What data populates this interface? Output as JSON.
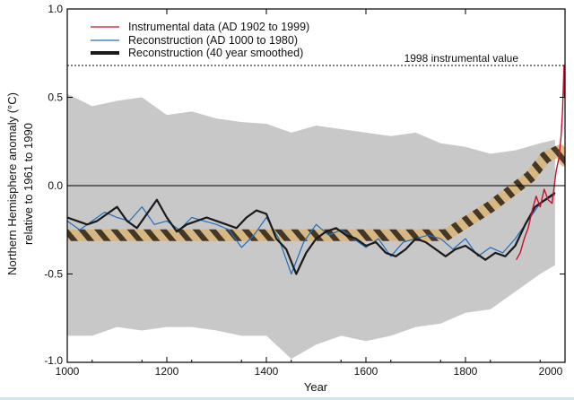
{
  "chart_data": {
    "type": "line",
    "xlabel": "Year",
    "ylabel_lines": [
      "Northern Hemisphere anomaly (°C)",
      "relative to 1961 to 1990"
    ],
    "xlim": [
      1000,
      2000
    ],
    "ylim": [
      -1.0,
      1.0
    ],
    "x_ticks": [
      1000,
      1200,
      1400,
      1600,
      1800,
      2000
    ],
    "y_ticks": [
      -1.0,
      -0.5,
      0.0,
      0.5,
      1.0
    ],
    "x_tick_labels": [
      "1000",
      "1200",
      "1400",
      "1600",
      "1800",
      "2000"
    ],
    "y_tick_labels": [
      "-1.0",
      "-0.5",
      "0.0",
      "0.5",
      "1.0"
    ],
    "zero_line": true,
    "legend_position": "top-left",
    "colors": {
      "instrumental": "#c8102e",
      "reconstruction": "#1f6fbf",
      "smoothed": "#1a1a1a",
      "uncertainty": "#c8c8c8",
      "overlay_light": "#e2c48a",
      "overlay_dark": "#3a2a18"
    },
    "annotation": {
      "label": "1998 instrumental value",
      "y": 0.68
    },
    "series": [
      {
        "name": "Instrumental data (AD 1902 to 1999)",
        "style": "thin-line",
        "x": [
          1902,
          1910,
          1918,
          1926,
          1934,
          1942,
          1950,
          1958,
          1966,
          1974,
          1982,
          1988,
          1992,
          1995,
          1998,
          1999
        ],
        "y": [
          -0.42,
          -0.38,
          -0.3,
          -0.24,
          -0.14,
          -0.06,
          -0.12,
          -0.02,
          -0.08,
          -0.1,
          0.08,
          0.16,
          0.28,
          0.42,
          0.68,
          0.5
        ]
      },
      {
        "name": "Reconstruction (AD 1000 to 1980)",
        "style": "thin-line",
        "x": [
          1000,
          1025,
          1050,
          1075,
          1100,
          1125,
          1150,
          1175,
          1200,
          1225,
          1250,
          1275,
          1300,
          1325,
          1350,
          1375,
          1400,
          1425,
          1450,
          1475,
          1500,
          1525,
          1550,
          1575,
          1600,
          1625,
          1650,
          1675,
          1700,
          1725,
          1750,
          1775,
          1800,
          1825,
          1850,
          1875,
          1900,
          1925,
          1950,
          1980
        ],
        "y": [
          -0.2,
          -0.25,
          -0.2,
          -0.15,
          -0.18,
          -0.2,
          -0.12,
          -0.22,
          -0.2,
          -0.25,
          -0.18,
          -0.2,
          -0.22,
          -0.25,
          -0.35,
          -0.28,
          -0.18,
          -0.3,
          -0.5,
          -0.32,
          -0.22,
          -0.28,
          -0.25,
          -0.3,
          -0.35,
          -0.3,
          -0.4,
          -0.32,
          -0.3,
          -0.28,
          -0.3,
          -0.36,
          -0.3,
          -0.4,
          -0.35,
          -0.38,
          -0.3,
          -0.2,
          -0.1,
          -0.05
        ]
      },
      {
        "name": "Reconstruction (40 year smoothed)",
        "style": "thick-line",
        "x": [
          1000,
          1020,
          1040,
          1060,
          1080,
          1100,
          1120,
          1140,
          1160,
          1180,
          1200,
          1220,
          1240,
          1260,
          1280,
          1300,
          1320,
          1340,
          1360,
          1380,
          1400,
          1420,
          1440,
          1460,
          1480,
          1500,
          1520,
          1540,
          1560,
          1580,
          1600,
          1620,
          1640,
          1660,
          1680,
          1700,
          1720,
          1740,
          1760,
          1780,
          1800,
          1820,
          1840,
          1860,
          1880,
          1900,
          1920,
          1940,
          1960,
          1980
        ],
        "y": [
          -0.18,
          -0.2,
          -0.22,
          -0.2,
          -0.16,
          -0.12,
          -0.2,
          -0.24,
          -0.16,
          -0.08,
          -0.18,
          -0.26,
          -0.22,
          -0.2,
          -0.18,
          -0.2,
          -0.22,
          -0.24,
          -0.18,
          -0.14,
          -0.16,
          -0.3,
          -0.36,
          -0.5,
          -0.38,
          -0.3,
          -0.26,
          -0.24,
          -0.28,
          -0.3,
          -0.34,
          -0.32,
          -0.38,
          -0.4,
          -0.36,
          -0.3,
          -0.32,
          -0.36,
          -0.4,
          -0.36,
          -0.34,
          -0.38,
          -0.42,
          -0.38,
          -0.4,
          -0.34,
          -0.22,
          -0.12,
          -0.08,
          -0.04
        ]
      },
      {
        "name": "",
        "style": "uncertainty-band",
        "x": [
          1000,
          1050,
          1100,
          1150,
          1200,
          1250,
          1300,
          1350,
          1400,
          1450,
          1500,
          1550,
          1600,
          1650,
          1700,
          1750,
          1800,
          1850,
          1900,
          1950,
          1980
        ],
        "upper": [
          0.52,
          0.45,
          0.48,
          0.5,
          0.4,
          0.42,
          0.38,
          0.36,
          0.35,
          0.3,
          0.34,
          0.32,
          0.3,
          0.28,
          0.3,
          0.24,
          0.22,
          0.18,
          0.2,
          0.24,
          0.26
        ],
        "lower": [
          -0.85,
          -0.85,
          -0.8,
          -0.82,
          -0.8,
          -0.8,
          -0.82,
          -0.85,
          -0.85,
          -0.98,
          -0.9,
          -0.85,
          -0.88,
          -0.85,
          -0.8,
          -0.78,
          -0.72,
          -0.7,
          -0.6,
          -0.5,
          -0.45
        ]
      },
      {
        "name": "",
        "style": "overlay-band",
        "x": [
          1000,
          1760,
          1850,
          1930,
          1960,
          1990,
          2000
        ],
        "y": [
          -0.28,
          -0.28,
          -0.12,
          0.05,
          0.16,
          0.2,
          0.14
        ]
      }
    ]
  }
}
